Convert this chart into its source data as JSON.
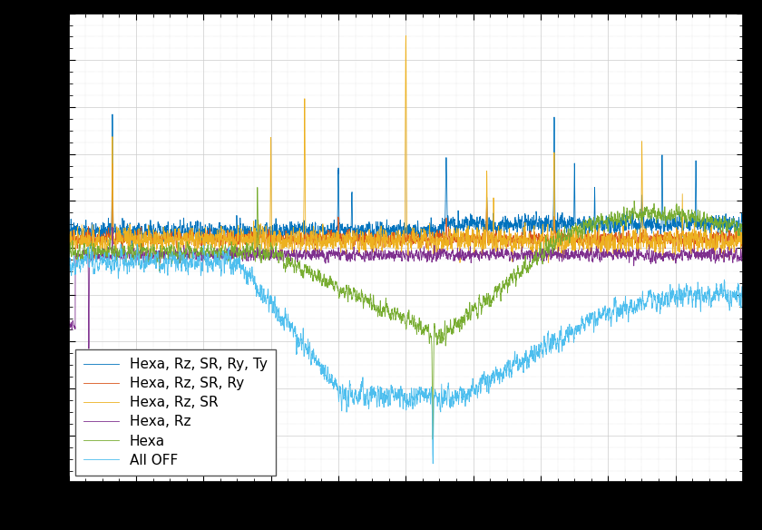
{
  "legend_entries": [
    "Hexa, Rz, SR, Ry, Ty",
    "Hexa, Rz, SR, Ry",
    "Hexa, Rz, SR",
    "Hexa, Rz",
    "Hexa",
    "All OFF"
  ],
  "line_colors": [
    "#0072BD",
    "#D95319",
    "#EDB120",
    "#7E2F8E",
    "#77AC30",
    "#4DBEEE"
  ],
  "background_color": "#FFFFFF",
  "fig_bg_color": "#000000",
  "grid_color": "#CCCCCC",
  "legend_loc": "lower left",
  "legend_fontsize": 11,
  "border_color": "#000000"
}
